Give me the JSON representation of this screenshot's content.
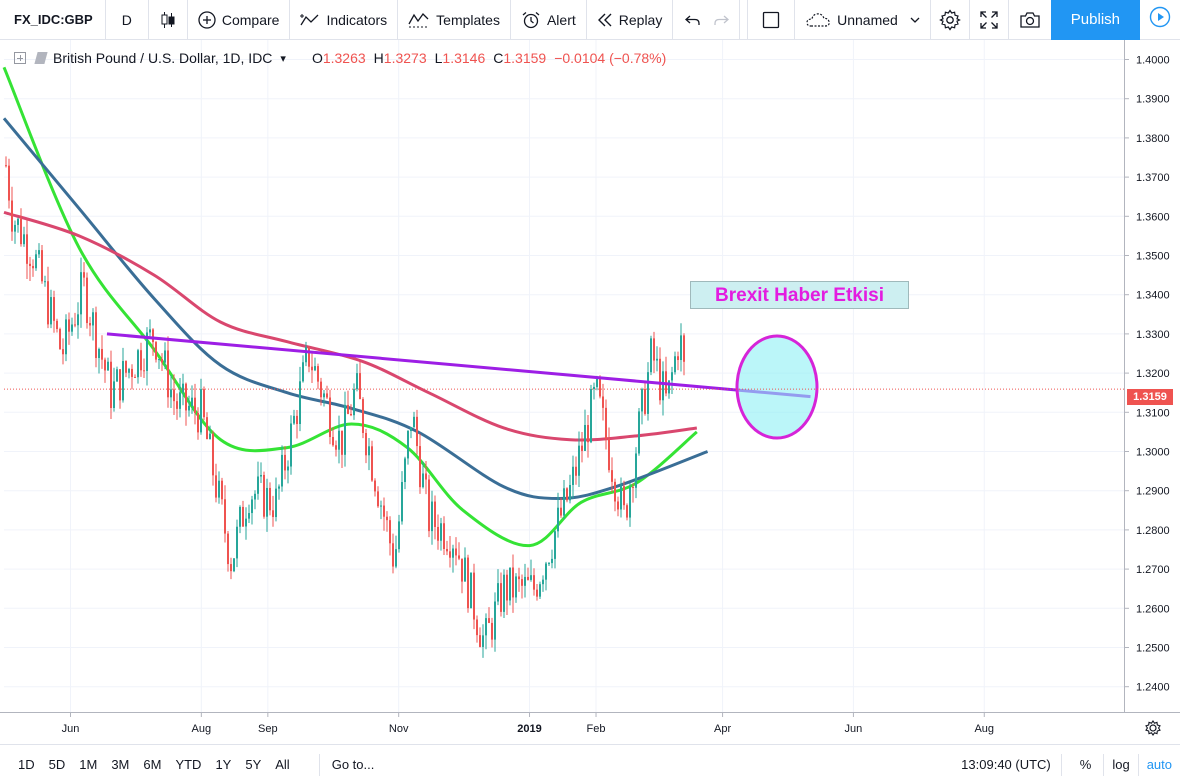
{
  "toolbar": {
    "symbol": "FX_IDC:GBP",
    "interval": "D",
    "compare": "Compare",
    "indicators": "Indicators",
    "templates": "Templates",
    "alert": "Alert",
    "replay": "Replay",
    "layout_name": "Unnamed",
    "publish": "Publish"
  },
  "legend": {
    "title": "British Pound / U.S. Dollar, 1D, IDC",
    "o_label": "O",
    "o_value": "1.3263",
    "h_label": "H",
    "h_value": "1.3273",
    "l_label": "L",
    "l_value": "1.3146",
    "c_label": "C",
    "c_value": "1.3159",
    "change": "−0.0104 (−0.78%)"
  },
  "annotation": {
    "label": "Brexit Haber Etkisi"
  },
  "price_tag": "1.3159",
  "colors": {
    "candle_up": "#26a69a",
    "candle_down": "#ef5350",
    "ma_fast": "#35e335",
    "ma_mid": "#3a6e96",
    "ma_slow": "#d9476e",
    "trendline": "#9d1ee5",
    "highlight_fill": "#8ef0f5",
    "highlight_stroke": "#d624d8"
  },
  "chart_data": {
    "type": "candlestick",
    "y_axis_ticks": [
      "1.4000",
      "1.3900",
      "1.3800",
      "1.3700",
      "1.3600",
      "1.3500",
      "1.3400",
      "1.3300",
      "1.3200",
      "1.3100",
      "1.3000",
      "1.2900",
      "1.2800",
      "1.2700",
      "1.2600",
      "1.2500",
      "1.2400"
    ],
    "ylim": [
      1.2365,
      1.4045
    ],
    "x_axis_ticks": [
      {
        "label": "Jun",
        "bold": false
      },
      {
        "label": "Aug",
        "bold": false
      },
      {
        "label": "Sep",
        "bold": false
      },
      {
        "label": "Nov",
        "bold": false
      },
      {
        "label": "2019",
        "bold": true
      },
      {
        "label": "Feb",
        "bold": false
      },
      {
        "label": "Apr",
        "bold": false
      },
      {
        "label": "Jun",
        "bold": false
      },
      {
        "label": "Aug",
        "bold": false
      }
    ],
    "price_anchors": [
      [
        "2018-05-01",
        1.377
      ],
      [
        "2018-05-05",
        1.36
      ],
      [
        "2018-05-15",
        1.35
      ],
      [
        "2018-05-28",
        1.325
      ],
      [
        "2018-06-07",
        1.342
      ],
      [
        "2018-06-20",
        1.315
      ],
      [
        "2018-07-10",
        1.33
      ],
      [
        "2018-07-20",
        1.312
      ],
      [
        "2018-08-01",
        1.31
      ],
      [
        "2018-08-15",
        1.272
      ],
      [
        "2018-08-23",
        1.29
      ],
      [
        "2018-09-05",
        1.287
      ],
      [
        "2018-09-20",
        1.325
      ],
      [
        "2018-10-05",
        1.302
      ],
      [
        "2018-10-12",
        1.316
      ],
      [
        "2018-10-30",
        1.272
      ],
      [
        "2018-11-07",
        1.31
      ],
      [
        "2018-11-15",
        1.283
      ],
      [
        "2018-11-27",
        1.278
      ],
      [
        "2018-12-11",
        1.251
      ],
      [
        "2018-12-20",
        1.265
      ],
      [
        "2019-01-03",
        1.265
      ],
      [
        "2019-01-20",
        1.29
      ],
      [
        "2019-02-01",
        1.315
      ],
      [
        "2019-02-14",
        1.283
      ],
      [
        "2019-02-27",
        1.325
      ],
      [
        "2019-03-06",
        1.312
      ],
      [
        "2019-03-12",
        1.33
      ],
      [
        "2019-03-15",
        1.316
      ]
    ],
    "moving_averages": [
      {
        "color_key": "ma_fast",
        "points": [
          [
            "2018-05-01",
            1.398
          ],
          [
            "2018-06-05",
            1.352
          ],
          [
            "2018-07-10",
            1.326
          ],
          [
            "2018-08-10",
            1.303
          ],
          [
            "2018-09-10",
            1.301
          ],
          [
            "2018-10-10",
            1.307
          ],
          [
            "2018-11-05",
            1.301
          ],
          [
            "2018-12-01",
            1.285
          ],
          [
            "2019-01-01",
            1.276
          ],
          [
            "2019-01-25",
            1.287
          ],
          [
            "2019-02-20",
            1.292
          ],
          [
            "2019-03-20",
            1.305
          ]
        ]
      },
      {
        "color_key": "ma_mid",
        "points": [
          [
            "2018-05-01",
            1.385
          ],
          [
            "2018-06-05",
            1.362
          ],
          [
            "2018-07-10",
            1.339
          ],
          [
            "2018-08-10",
            1.322
          ],
          [
            "2018-09-10",
            1.315
          ],
          [
            "2018-10-10",
            1.311
          ],
          [
            "2018-11-10",
            1.305
          ],
          [
            "2018-12-20",
            1.291
          ],
          [
            "2019-01-15",
            1.288
          ],
          [
            "2019-02-10",
            1.291
          ],
          [
            "2019-03-25",
            1.3
          ]
        ]
      },
      {
        "color_key": "ma_slow",
        "points": [
          [
            "2018-05-01",
            1.361
          ],
          [
            "2018-06-05",
            1.355
          ],
          [
            "2018-07-10",
            1.345
          ],
          [
            "2018-08-10",
            1.333
          ],
          [
            "2018-09-10",
            1.328
          ],
          [
            "2018-10-15",
            1.323
          ],
          [
            "2018-11-15",
            1.315
          ],
          [
            "2018-12-20",
            1.306
          ],
          [
            "2019-01-20",
            1.303
          ],
          [
            "2019-02-20",
            1.304
          ],
          [
            "2019-03-20",
            1.306
          ]
        ]
      }
    ],
    "trendline": [
      [
        "2018-06-18",
        1.33
      ],
      [
        "2019-05-12",
        1.314
      ]
    ],
    "last_price": 1.3159
  },
  "bottombar": {
    "ranges": [
      "1D",
      "5D",
      "1M",
      "3M",
      "6M",
      "YTD",
      "1Y",
      "5Y",
      "All"
    ],
    "goto": "Go to...",
    "time": "13:09:40 (UTC)",
    "percent": "%",
    "log": "log",
    "auto": "auto"
  }
}
